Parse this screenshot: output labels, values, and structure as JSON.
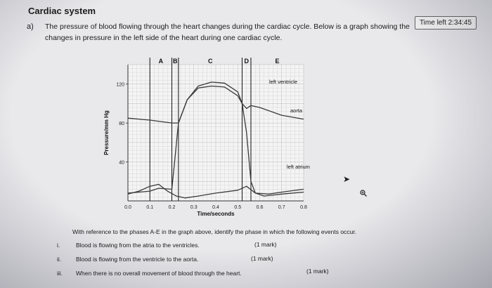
{
  "header": {
    "title": "Cardiac system",
    "timer": "Time left 2:34:45"
  },
  "question": {
    "label": "a)",
    "line1": "The pressure of blood flowing through the heart changes during the cardiac cycle. Below is a graph showing the",
    "line2": "changes in pressure in the left side of the heart during one cardiac cycle."
  },
  "chart_data": {
    "type": "line",
    "xlabel": "Time/seconds",
    "ylabel": "Pressure/mm Hg",
    "xlim": [
      0.0,
      0.8
    ],
    "ylim": [
      0,
      140
    ],
    "x_ticks": [
      "0.0",
      "0.1",
      "0.2",
      "0.3",
      "0.4",
      "0.5",
      "0.6",
      "0.7",
      "0.8"
    ],
    "y_ticks": [
      "40",
      "80",
      "120"
    ],
    "grid": true,
    "phases": [
      {
        "label": "A",
        "start": 0.1,
        "end": 0.2
      },
      {
        "label": "B",
        "start": 0.2,
        "end": 0.23
      },
      {
        "label": "C",
        "start": 0.23,
        "end": 0.52
      },
      {
        "label": "D",
        "start": 0.52,
        "end": 0.56
      },
      {
        "label": "E",
        "start": 0.56,
        "end": 0.8
      }
    ],
    "series": [
      {
        "name": "left ventricle",
        "color": "#3a3a3a",
        "points": [
          [
            0.0,
            8
          ],
          [
            0.1,
            10
          ],
          [
            0.14,
            13
          ],
          [
            0.2,
            12
          ],
          [
            0.23,
            80
          ],
          [
            0.27,
            104
          ],
          [
            0.32,
            118
          ],
          [
            0.38,
            122
          ],
          [
            0.44,
            121
          ],
          [
            0.5,
            112
          ],
          [
            0.52,
            100
          ],
          [
            0.54,
            70
          ],
          [
            0.56,
            20
          ],
          [
            0.58,
            8
          ],
          [
            0.62,
            5
          ],
          [
            0.7,
            7
          ],
          [
            0.8,
            9
          ]
        ]
      },
      {
        "name": "aorta",
        "color": "#3a3a3a",
        "points": [
          [
            0.0,
            85
          ],
          [
            0.1,
            83
          ],
          [
            0.2,
            80
          ],
          [
            0.23,
            80
          ],
          [
            0.27,
            104
          ],
          [
            0.32,
            116
          ],
          [
            0.38,
            118
          ],
          [
            0.44,
            117
          ],
          [
            0.5,
            108
          ],
          [
            0.52,
            100
          ],
          [
            0.54,
            95
          ],
          [
            0.56,
            98
          ],
          [
            0.6,
            96
          ],
          [
            0.7,
            88
          ],
          [
            0.8,
            84
          ]
        ]
      },
      {
        "name": "left atrium",
        "color": "#3a3a3a",
        "points": [
          [
            0.0,
            7
          ],
          [
            0.05,
            10
          ],
          [
            0.1,
            15
          ],
          [
            0.14,
            17
          ],
          [
            0.18,
            10
          ],
          [
            0.22,
            5
          ],
          [
            0.26,
            3
          ],
          [
            0.32,
            5
          ],
          [
            0.4,
            8
          ],
          [
            0.5,
            11
          ],
          [
            0.54,
            15
          ],
          [
            0.58,
            8
          ],
          [
            0.64,
            7
          ],
          [
            0.7,
            9
          ],
          [
            0.8,
            12
          ]
        ]
      }
    ],
    "labels": {
      "left_ventricle": "left ventricle",
      "aorta": "aorta",
      "left_atrium": "left atrium"
    }
  },
  "instructions": "With reference to the phases A-E in the graph above, identify the phase in which the following events occur.",
  "sub_questions": [
    {
      "num": "i.",
      "text": "Blood is flowing from the atria to the ventricles.",
      "mark": "(1 mark)"
    },
    {
      "num": "ii.",
      "text": "Blood is flowing from the ventricle to the aorta.",
      "mark": "(1 mark)"
    },
    {
      "num": "iii.",
      "text": "When there is no overall movement of blood through the heart.",
      "mark": "(1 mark)"
    }
  ]
}
